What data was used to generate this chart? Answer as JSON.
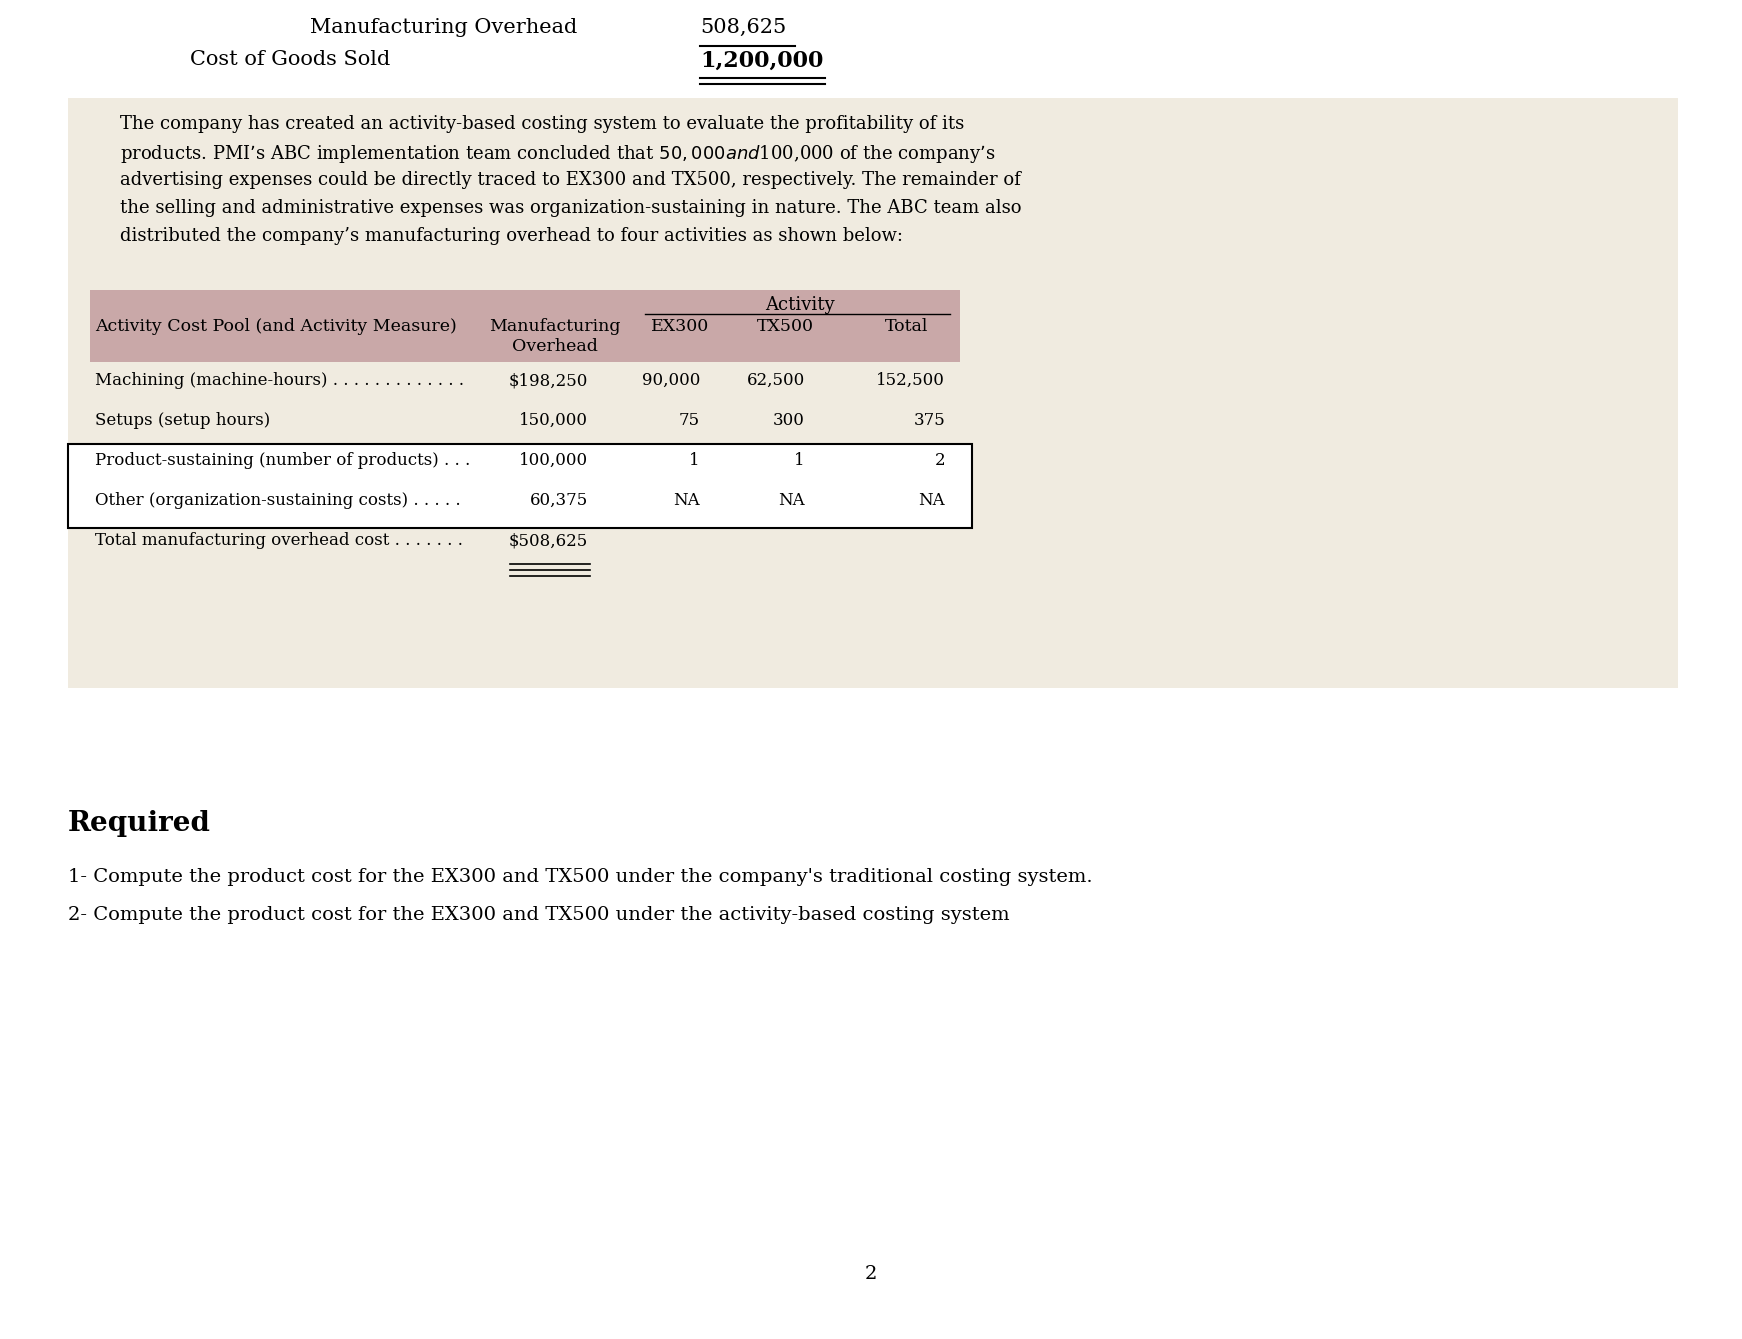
{
  "bg_color": "#ffffff",
  "top_section": {
    "line1_label": "Manufacturing Overhead",
    "line1_value": "508,625",
    "line2_label": "Cost of Goods Sold",
    "line2_value": "1,200,000"
  },
  "table_bg": "#f0ebe0",
  "table_header_bg": "#c9a8a8",
  "para_lines": [
    "The company has created an activity-based costing system to evaluate the profitability of its",
    "products. PMI’s ABC implementation team concluded that $50,000 and $100,000 of the company’s",
    "advertising expenses could be directly traced to EX300 and TX500, respectively. The remainder of",
    "the selling and administrative expenses was organization-sustaining in nature. The ABC team also",
    "distributed the company’s manufacturing overhead to four activities as shown below:"
  ],
  "table_rows": [
    [
      "Machining (machine-hours) . . . . . . . . . . . . .",
      "$198,250",
      "90,000",
      "62,500",
      "152,500"
    ],
    [
      "Setups (setup hours)",
      "150,000",
      "75",
      "300",
      "375"
    ],
    [
      "Product-sustaining (number of products) . . .",
      "100,000",
      "1",
      "1",
      "2"
    ],
    [
      "Other (organization-sustaining costs) . . . . .",
      "60,375",
      "NA",
      "NA",
      "NA"
    ],
    [
      "Total manufacturing overhead cost . . . . . . .",
      "$508,625",
      "",
      "",
      ""
    ]
  ],
  "required_label": "Required",
  "required_items": [
    "1- Compute the product cost for the EX300 and TX500 under the company's traditional costing system.",
    "2- Compute the product cost for the EX300 and TX500 under the activity-based costing system"
  ],
  "page_number": "2"
}
